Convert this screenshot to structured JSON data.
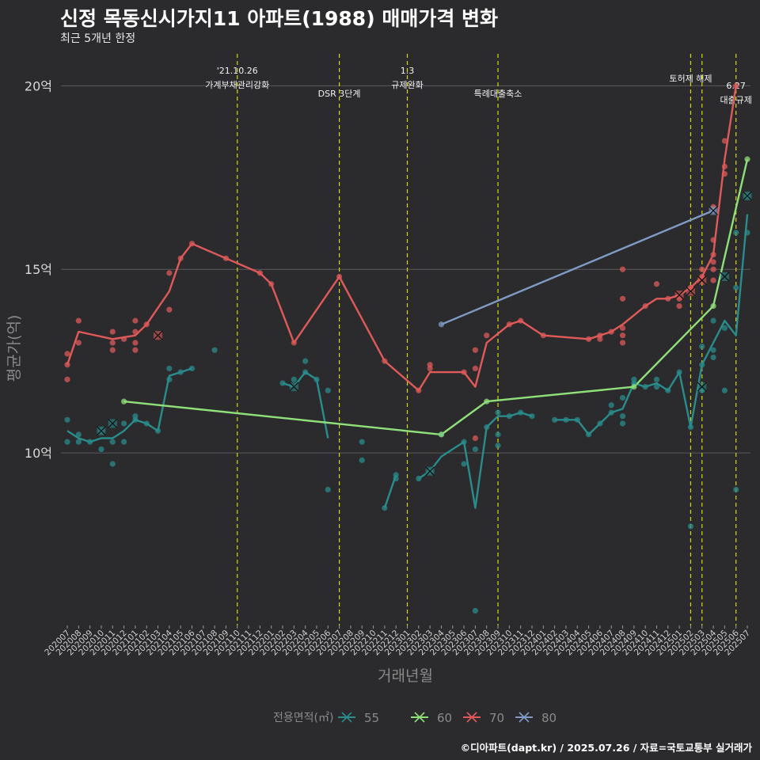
{
  "title": "신정 목동신시가지11 아파트(1988) 매매가격 변화",
  "subtitle": "최근 5개년 한정",
  "footer": "©디아파트(dapt.kr) / 2025.07.26 / 자료=국토교통부 실거래가",
  "chart_data": {
    "type": "line",
    "xlabel": "거래년월",
    "ylabel": "평균가(억)",
    "ylim": [
      5.3,
      21.0
    ],
    "yticks": [
      10,
      15,
      20
    ],
    "ytick_labels": [
      "10억",
      "15억",
      "20억"
    ],
    "categories": [
      "202007",
      "202008",
      "202009",
      "202010",
      "202011",
      "202012",
      "202101",
      "202102",
      "202103",
      "202104",
      "202105",
      "202106",
      "202107",
      "202108",
      "202109",
      "202110",
      "202111",
      "202112",
      "202201",
      "202202",
      "202203",
      "202204",
      "202205",
      "202206",
      "202207",
      "202208",
      "202209",
      "202210",
      "202211",
      "202212",
      "202301",
      "202302",
      "202303",
      "202304",
      "202305",
      "202306",
      "202307",
      "202308",
      "202309",
      "202310",
      "202311",
      "202312",
      "202401",
      "202402",
      "202403",
      "202404",
      "202405",
      "202406",
      "202407",
      "202408",
      "202409",
      "202410",
      "202411",
      "202412",
      "202501",
      "202502",
      "202503",
      "202504",
      "202505",
      "202506",
      "202507"
    ],
    "grid": true,
    "legend": {
      "title": "전용면적(㎡)",
      "position": "bottom"
    },
    "events": [
      {
        "x": 15.0,
        "label": "'21.10.26\n가계부채관리강화"
      },
      {
        "x": 24.0,
        "label": "DSR 3단계"
      },
      {
        "x": 30.0,
        "label": "1.3\n규제완화"
      },
      {
        "x": 38.0,
        "label": "특례대출축소"
      },
      {
        "x": 55.0,
        "label": "토허제 해제"
      },
      {
        "x": 56.0,
        "label": ""
      },
      {
        "x": 59.0,
        "label": "6.27\n대출규제"
      }
    ],
    "series": [
      {
        "name": "55",
        "color": "#2a8c8c",
        "segments": [
          [
            [
              0,
              10.6
            ],
            [
              1,
              10.4
            ],
            [
              2,
              10.3
            ],
            [
              3,
              10.4
            ],
            [
              4,
              10.4
            ],
            [
              5,
              10.6
            ],
            [
              6,
              10.9
            ],
            [
              7,
              10.8
            ],
            [
              8,
              10.6
            ],
            [
              9,
              12.1
            ],
            [
              10,
              12.2
            ],
            [
              11,
              12.3
            ]
          ],
          [
            [
              19,
              11.9
            ],
            [
              20,
              11.8
            ],
            [
              21,
              12.2
            ],
            [
              22,
              12.0
            ],
            [
              23,
              10.4
            ]
          ],
          [
            [
              28,
              8.5
            ],
            [
              29,
              9.4
            ]
          ],
          [
            [
              31,
              9.3
            ],
            [
              32,
              9.5
            ],
            [
              33,
              9.9
            ],
            [
              34,
              10.1
            ],
            [
              35,
              10.3
            ],
            [
              36,
              8.5
            ],
            [
              37,
              10.7
            ],
            [
              38,
              11.0
            ],
            [
              39,
              11.0
            ],
            [
              40,
              11.1
            ],
            [
              41,
              11.0
            ]
          ],
          [
            [
              43,
              10.9
            ],
            [
              44,
              10.9
            ],
            [
              45,
              10.9
            ],
            [
              46,
              10.5
            ],
            [
              47,
              10.8
            ],
            [
              48,
              11.1
            ],
            [
              49,
              11.2
            ],
            [
              50,
              11.9
            ],
            [
              51,
              11.8
            ],
            [
              52,
              11.9
            ],
            [
              53,
              11.7
            ],
            [
              54,
              12.2
            ],
            [
              55,
              10.7
            ],
            [
              56,
              12.4
            ],
            [
              57,
              13.0
            ],
            [
              58,
              13.6
            ],
            [
              59,
              13.2
            ],
            [
              60,
              16.5
            ]
          ]
        ],
        "points": [
          [
            0,
            10.9
          ],
          [
            0,
            10.3
          ],
          [
            1,
            10.5
          ],
          [
            1,
            10.3
          ],
          [
            2,
            10.3
          ],
          [
            3,
            10.1
          ],
          [
            3,
            10.6
          ],
          [
            4,
            9.7
          ],
          [
            4,
            10.3
          ],
          [
            5,
            10.8
          ],
          [
            5,
            10.3
          ],
          [
            6,
            11.0
          ],
          [
            6,
            10.9
          ],
          [
            7,
            10.8
          ],
          [
            8,
            10.6
          ],
          [
            9,
            12.0
          ],
          [
            9,
            12.3
          ],
          [
            10,
            12.2
          ],
          [
            11,
            12.3
          ],
          [
            13,
            12.8
          ],
          [
            19,
            11.9
          ],
          [
            20,
            12.0
          ],
          [
            21,
            12.2
          ],
          [
            21,
            12.5
          ],
          [
            22,
            12.0
          ],
          [
            23,
            11.7
          ],
          [
            23,
            9.0
          ],
          [
            26,
            10.3
          ],
          [
            26,
            9.8
          ],
          [
            28,
            8.5
          ],
          [
            29,
            9.4
          ],
          [
            29,
            9.3
          ],
          [
            31,
            9.3
          ],
          [
            32,
            9.5
          ],
          [
            33,
            10.5
          ],
          [
            35,
            10.3
          ],
          [
            35,
            9.7
          ],
          [
            36,
            10.1
          ],
          [
            36,
            5.7
          ],
          [
            37,
            10.7
          ],
          [
            38,
            11.1
          ],
          [
            38,
            10.2
          ],
          [
            38,
            10.5
          ],
          [
            39,
            11.0
          ],
          [
            40,
            11.1
          ],
          [
            41,
            11.0
          ],
          [
            43,
            10.9
          ],
          [
            44,
            10.9
          ],
          [
            45,
            10.9
          ],
          [
            46,
            10.5
          ],
          [
            47,
            10.8
          ],
          [
            48,
            11.1
          ],
          [
            48,
            11.3
          ],
          [
            49,
            10.8
          ],
          [
            49,
            11.0
          ],
          [
            49,
            11.5
          ],
          [
            50,
            11.9
          ],
          [
            50,
            12.0
          ],
          [
            51,
            11.8
          ],
          [
            52,
            12.0
          ],
          [
            52,
            11.8
          ],
          [
            53,
            11.7
          ],
          [
            54,
            12.2
          ],
          [
            55,
            8.0
          ],
          [
            55,
            10.7
          ],
          [
            56,
            12.9
          ],
          [
            56,
            12.4
          ],
          [
            56,
            11.7
          ],
          [
            57,
            12.6
          ],
          [
            57,
            13.6
          ],
          [
            57,
            12.8
          ],
          [
            58,
            11.7
          ],
          [
            58,
            13.4
          ],
          [
            59,
            9.0
          ],
          [
            59,
            14.5
          ],
          [
            59,
            16.0
          ],
          [
            60,
            16.0
          ],
          [
            60,
            17.0
          ]
        ],
        "markers": [
          [
            3,
            10.6
          ],
          [
            4,
            10.8
          ],
          [
            20,
            11.8
          ],
          [
            32,
            9.5
          ],
          [
            56,
            11.8
          ],
          [
            58,
            14.8
          ],
          [
            60,
            17.0
          ]
        ]
      },
      {
        "name": "60",
        "color": "#90e07a",
        "segments": [
          [
            [
              5,
              11.4
            ],
            [
              33,
              10.5
            ],
            [
              37,
              11.4
            ],
            [
              50,
              11.8
            ],
            [
              57,
              14.0
            ],
            [
              60,
              18.0
            ]
          ]
        ],
        "points": [
          [
            5,
            11.4
          ],
          [
            33,
            10.5
          ],
          [
            37,
            11.4
          ],
          [
            50,
            11.8
          ],
          [
            57,
            14.0
          ],
          [
            60,
            18.0
          ]
        ],
        "markers": []
      },
      {
        "name": "70",
        "color": "#e05a5a",
        "segments": [
          [
            [
              0,
              12.4
            ],
            [
              1,
              13.3
            ],
            [
              4,
              13.1
            ],
            [
              6,
              13.2
            ],
            [
              7,
              13.5
            ],
            [
              9,
              14.4
            ],
            [
              10,
              15.3
            ],
            [
              11,
              15.7
            ],
            [
              14,
              15.3
            ],
            [
              17,
              14.9
            ],
            [
              18,
              14.6
            ],
            [
              20,
              13.0
            ],
            [
              24,
              14.8
            ],
            [
              28,
              12.5
            ],
            [
              31,
              11.7
            ],
            [
              32,
              12.2
            ],
            [
              35,
              12.2
            ],
            [
              36,
              11.8
            ],
            [
              37,
              13.0
            ],
            [
              39,
              13.5
            ],
            [
              40,
              13.6
            ],
            [
              42,
              13.2
            ],
            [
              46,
              13.1
            ],
            [
              47,
              13.2
            ],
            [
              48,
              13.3
            ],
            [
              49,
              13.5
            ],
            [
              51,
              14.0
            ],
            [
              52,
              14.2
            ],
            [
              53,
              14.2
            ],
            [
              54,
              14.3
            ],
            [
              55,
              14.5
            ],
            [
              56,
              14.8
            ],
            [
              57,
              15.4
            ],
            [
              58,
              18.0
            ],
            [
              59,
              20.0
            ]
          ]
        ],
        "points": [
          [
            0,
            12.7
          ],
          [
            0,
            12.4
          ],
          [
            0,
            12.0
          ],
          [
            1,
            13.6
          ],
          [
            1,
            13.0
          ],
          [
            4,
            13.3
          ],
          [
            4,
            13.0
          ],
          [
            4,
            12.8
          ],
          [
            5,
            13.1
          ],
          [
            6,
            13.6
          ],
          [
            6,
            13.3
          ],
          [
            6,
            13.0
          ],
          [
            6,
            12.8
          ],
          [
            7,
            13.5
          ],
          [
            9,
            14.9
          ],
          [
            9,
            13.9
          ],
          [
            10,
            15.3
          ],
          [
            11,
            15.7
          ],
          [
            14,
            15.3
          ],
          [
            17,
            14.9
          ],
          [
            18,
            14.6
          ],
          [
            20,
            13.0
          ],
          [
            24,
            14.8
          ],
          [
            28,
            12.5
          ],
          [
            31,
            11.7
          ],
          [
            32,
            12.4
          ],
          [
            32,
            12.3
          ],
          [
            35,
            12.2
          ],
          [
            36,
            12.3
          ],
          [
            36,
            12.8
          ],
          [
            36,
            10.4
          ],
          [
            37,
            13.2
          ],
          [
            39,
            13.5
          ],
          [
            40,
            13.6
          ],
          [
            42,
            13.2
          ],
          [
            46,
            13.1
          ],
          [
            47,
            13.2
          ],
          [
            47,
            13.1
          ],
          [
            48,
            13.3
          ],
          [
            49,
            13.2
          ],
          [
            49,
            13.0
          ],
          [
            49,
            13.4
          ],
          [
            49,
            14.2
          ],
          [
            49,
            15.0
          ],
          [
            51,
            14.0
          ],
          [
            52,
            14.6
          ],
          [
            53,
            14.2
          ],
          [
            54,
            14.0
          ],
          [
            54,
            14.2
          ],
          [
            55,
            14.5
          ],
          [
            56,
            14.8
          ],
          [
            56,
            15.0
          ],
          [
            57,
            15.4
          ],
          [
            57,
            15.8
          ],
          [
            57,
            15.2
          ],
          [
            57,
            15.0
          ],
          [
            57,
            14.7
          ],
          [
            57,
            16.7
          ],
          [
            58,
            17.8
          ],
          [
            58,
            18.5
          ],
          [
            58,
            17.6
          ],
          [
            59,
            20.0
          ]
        ],
        "markers": [
          [
            8,
            13.2
          ],
          [
            54,
            14.3
          ],
          [
            55,
            14.4
          ],
          [
            56,
            14.7
          ]
        ]
      },
      {
        "name": "80",
        "color": "#7f9bc4",
        "segments": [
          [
            [
              33,
              13.5
            ],
            [
              57,
              16.6
            ]
          ]
        ],
        "points": [
          [
            33,
            13.5
          ],
          [
            57,
            16.6
          ]
        ],
        "markers": [
          [
            57,
            16.6
          ]
        ]
      }
    ]
  }
}
